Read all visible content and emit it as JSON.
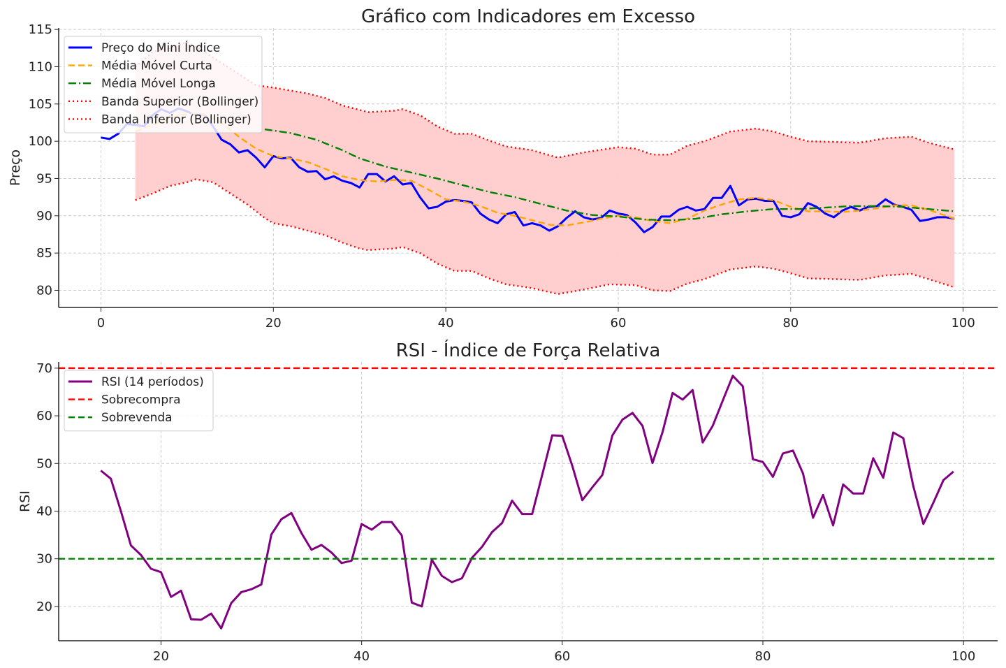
{
  "chart_data": [
    {
      "type": "line",
      "title": "Gráfico com Indicadores em Excesso",
      "xlabel": "",
      "ylabel": "Preço",
      "xlim": [
        -4.9,
        104
      ],
      "ylim": [
        77.7,
        115.2
      ],
      "xticks": [
        0,
        20,
        40,
        60,
        80,
        100
      ],
      "yticks": [
        80,
        85,
        90,
        95,
        100,
        105,
        110,
        115
      ],
      "grid": true,
      "legend_placement": "top-left",
      "series": [
        {
          "name": "Preço do Mini Índice",
          "style": "solid",
          "color": "#0000ff",
          "x_start": 0,
          "values": [
            100.5,
            100.3,
            101,
            102.3,
            102.2,
            102,
            103.5,
            104.3,
            103.8,
            104.4,
            104,
            103.5,
            103.6,
            102,
            100.2,
            99.6,
            98.5,
            98.8,
            97.8,
            96.5,
            98,
            97.7,
            97.8,
            96.5,
            95.9,
            96,
            94.9,
            95.3,
            94.7,
            94.4,
            93.8,
            95.6,
            95.6,
            94.6,
            95.3,
            94.2,
            94.4,
            92.5,
            91,
            91.2,
            91.9,
            92.1,
            92,
            91.8,
            90.3,
            89.5,
            89,
            90.2,
            90.5,
            88.7,
            89,
            88.7,
            88,
            88.6,
            89.7,
            90.6,
            89.8,
            89.5,
            89.7,
            90.7,
            90.3,
            90.1,
            89.1,
            87.8,
            88.5,
            89.9,
            89.9,
            90.8,
            91.2,
            90.7,
            90.9,
            92.4,
            92.4,
            94,
            91.4,
            92.2,
            92.3,
            92,
            92,
            90,
            89.8,
            90.2,
            91.7,
            91.2,
            90.3,
            89.8,
            90.7,
            91.2,
            90.7,
            91.2,
            91.3,
            92.2,
            91.5,
            91.2,
            90.8,
            89.3,
            89.5,
            89.8,
            89.8,
            89.6
          ]
        },
        {
          "name": "Média Móvel Curta",
          "style": "dashed",
          "color": "#ffa500",
          "points": [
            [
              4,
              101.3
            ],
            [
              6,
              102.2
            ],
            [
              8,
              103
            ],
            [
              10,
              103.8
            ],
            [
              12,
              103.6
            ],
            [
              14,
              102.5
            ],
            [
              16,
              100.6
            ],
            [
              18,
              99
            ],
            [
              20,
              98
            ],
            [
              22,
              97.7
            ],
            [
              24,
              97.2
            ],
            [
              26,
              96.3
            ],
            [
              28,
              95.3
            ],
            [
              30,
              94.8
            ],
            [
              32,
              94.6
            ],
            [
              34,
              94.8
            ],
            [
              36,
              94.7
            ],
            [
              38,
              93.5
            ],
            [
              40,
              92.2
            ],
            [
              42,
              91.9
            ],
            [
              44,
              91.3
            ],
            [
              46,
              90.4
            ],
            [
              48,
              90
            ],
            [
              50,
              89.4
            ],
            [
              52,
              88.8
            ],
            [
              54,
              88.7
            ],
            [
              56,
              89.1
            ],
            [
              58,
              89.6
            ],
            [
              60,
              90
            ],
            [
              62,
              89.8
            ],
            [
              64,
              89.3
            ],
            [
              66,
              89
            ],
            [
              68,
              89.6
            ],
            [
              70,
              90.7
            ],
            [
              72,
              91.5
            ],
            [
              74,
              92.2
            ],
            [
              76,
              92.4
            ],
            [
              78,
              92.1
            ],
            [
              80,
              91.2
            ],
            [
              82,
              90.6
            ],
            [
              84,
              90.6
            ],
            [
              86,
              90.5
            ],
            [
              88,
              90.7
            ],
            [
              90,
              91
            ],
            [
              92,
              91.4
            ],
            [
              94,
              91.4
            ],
            [
              96,
              90.8
            ],
            [
              99,
              89.6
            ]
          ]
        },
        {
          "name": "Média Móvel Longa",
          "style": "dashdot",
          "color": "#008000",
          "points": [
            [
              19,
              101.6
            ],
            [
              22,
              101.1
            ],
            [
              25,
              100.2
            ],
            [
              28,
              98.8
            ],
            [
              30,
              97.7
            ],
            [
              33,
              96.6
            ],
            [
              36,
              95.8
            ],
            [
              39,
              95
            ],
            [
              42,
              94.1
            ],
            [
              45,
              93.2
            ],
            [
              48,
              92.5
            ],
            [
              51,
              91.6
            ],
            [
              54,
              90.7
            ],
            [
              57,
              90.1
            ],
            [
              60,
              89.9
            ],
            [
              63,
              89.5
            ],
            [
              66,
              89.4
            ],
            [
              69,
              89.6
            ],
            [
              72,
              90.2
            ],
            [
              75,
              90.6
            ],
            [
              78,
              90.9
            ],
            [
              81,
              90.9
            ],
            [
              84,
              91.1
            ],
            [
              87,
              91.3
            ],
            [
              90,
              91.3
            ],
            [
              93,
              91.2
            ],
            [
              96,
              90.9
            ],
            [
              99,
              90.6
            ]
          ]
        },
        {
          "name": "Banda Superior (Bollinger)",
          "style": "dotted",
          "color": "#ff0000",
          "points": [
            [
              4,
              110
            ],
            [
              6,
              112
            ],
            [
              8,
              112.5
            ],
            [
              10,
              113.3
            ],
            [
              12,
              112
            ],
            [
              14,
              110.5
            ],
            [
              16,
              109
            ],
            [
              18,
              107.5
            ],
            [
              20,
              107.2
            ],
            [
              22,
              106.8
            ],
            [
              24,
              106.4
            ],
            [
              26,
              105.8
            ],
            [
              28,
              104.8
            ],
            [
              30,
              104.2
            ],
            [
              31,
              103.9
            ],
            [
              34,
              104.1
            ],
            [
              35,
              104.3
            ],
            [
              37,
              103.5
            ],
            [
              39,
              102
            ],
            [
              41,
              101
            ],
            [
              43,
              101
            ],
            [
              45,
              100.1
            ],
            [
              47,
              99.3
            ],
            [
              50,
              98.8
            ],
            [
              53,
              97.8
            ],
            [
              56,
              98.5
            ],
            [
              60,
              99.2
            ],
            [
              62,
              99
            ],
            [
              64,
              98.2
            ],
            [
              66,
              98.2
            ],
            [
              68,
              99.4
            ],
            [
              70,
              100
            ],
            [
              73,
              101.3
            ],
            [
              76,
              101.7
            ],
            [
              78,
              101.3
            ],
            [
              80,
              100.6
            ],
            [
              82,
              100
            ],
            [
              85,
              99.9
            ],
            [
              88,
              99.8
            ],
            [
              91,
              100.4
            ],
            [
              94,
              100.6
            ],
            [
              96,
              99.8
            ],
            [
              99,
              98.9
            ]
          ]
        },
        {
          "name": "Banda Inferior (Bollinger)",
          "style": "dotted",
          "color": "#ff0000",
          "points": [
            [
              4,
              92.1
            ],
            [
              6,
              93
            ],
            [
              8,
              94
            ],
            [
              10,
              94.5
            ],
            [
              11,
              94.9
            ],
            [
              13,
              94.5
            ],
            [
              15,
              93
            ],
            [
              17,
              91.5
            ],
            [
              19,
              89.7
            ],
            [
              20,
              89
            ],
            [
              22,
              88.6
            ],
            [
              24,
              88
            ],
            [
              26,
              87.4
            ],
            [
              28,
              86.4
            ],
            [
              30,
              85.6
            ],
            [
              31,
              85.4
            ],
            [
              34,
              85.6
            ],
            [
              35,
              85.8
            ],
            [
              37,
              85
            ],
            [
              39,
              83.6
            ],
            [
              41,
              82.6
            ],
            [
              43,
              82.6
            ],
            [
              45,
              81.6
            ],
            [
              47,
              80.8
            ],
            [
              50,
              80.3
            ],
            [
              53,
              79.5
            ],
            [
              56,
              80.1
            ],
            [
              59,
              80.8
            ],
            [
              62,
              80.7
            ],
            [
              64,
              80
            ],
            [
              66,
              79.9
            ],
            [
              68,
              80.9
            ],
            [
              70,
              81.5
            ],
            [
              73,
              82.8
            ],
            [
              76,
              83.2
            ],
            [
              78,
              82.9
            ],
            [
              80,
              82.3
            ],
            [
              82,
              81.6
            ],
            [
              85,
              81.5
            ],
            [
              88,
              81.4
            ],
            [
              91,
              82
            ],
            [
              94,
              82.2
            ],
            [
              96,
              81.5
            ],
            [
              99,
              80.4
            ]
          ]
        }
      ],
      "band_fill_color": "#ffcccc"
    },
    {
      "type": "line",
      "title": "RSI - Índice de Força Relativa",
      "xlabel": "",
      "ylabel": "RSI",
      "xlim": [
        9.8,
        103.4
      ],
      "ylim": [
        12.8,
        71.3
      ],
      "xticks": [
        20,
        40,
        60,
        80,
        100
      ],
      "yticks": [
        20,
        30,
        40,
        50,
        60,
        70
      ],
      "grid": true,
      "legend_placement": "top-left",
      "series": [
        {
          "name": "RSI (14 períodos)",
          "style": "solid",
          "color": "#800080",
          "x_start": 14,
          "values": [
            48.5,
            46.8,
            40,
            32.8,
            30.8,
            27.9,
            27.2,
            22,
            23.3,
            17.3,
            17.2,
            18.5,
            15.4,
            20.7,
            23,
            23.6,
            24.6,
            35.1,
            38.3,
            39.6,
            35.4,
            31.9,
            32.9,
            31.3,
            29.1,
            29.6,
            37.3,
            36.1,
            37.7,
            37.7,
            34.9,
            20.8,
            20,
            29.8,
            26.4,
            25.1,
            25.9,
            30.2,
            32.5,
            35.6,
            37.5,
            42.2,
            39.4,
            39.4,
            47.6,
            55.9,
            55.8,
            49.5,
            42.3,
            45,
            47.6,
            55.9,
            59.2,
            60.6,
            57.9,
            50.1,
            56.6,
            64.8,
            63.4,
            65.4,
            54.4,
            57.9,
            63.2,
            68.4,
            66.2,
            50.9,
            50.3,
            47.2,
            52.1,
            52.7,
            47.9,
            38.6,
            43.4,
            37,
            45.6,
            43.7,
            43.7,
            51.1,
            47,
            56.5,
            55.3,
            45.2,
            37.3,
            41.8,
            46.5,
            48.3
          ]
        },
        {
          "name": "Sobrecompra",
          "style": "dashed",
          "color": "#ff0000",
          "hline": 70
        },
        {
          "name": "Sobrevenda",
          "style": "dashed",
          "color": "#008000",
          "hline": 30
        }
      ]
    }
  ]
}
